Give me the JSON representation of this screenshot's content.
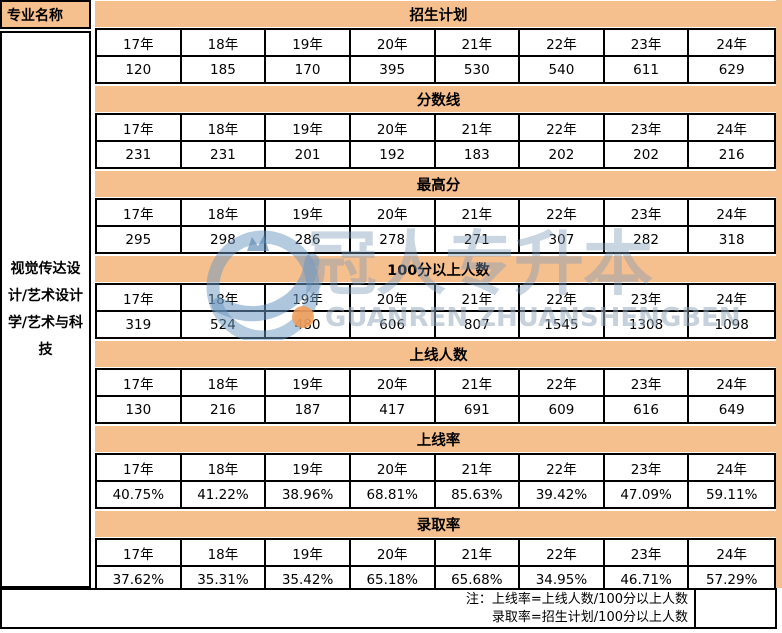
{
  "header": {
    "major_label": "专业名称"
  },
  "major_name": "视觉传达设计/艺术设计学/艺术与科技",
  "chart_data": {
    "type": "table",
    "row_header": "专业名称",
    "entity": "视觉传达设计/艺术设计学/艺术与科技",
    "columns": [
      "17年",
      "18年",
      "19年",
      "20年",
      "21年",
      "22年",
      "23年",
      "24年"
    ],
    "rows": [
      {
        "metric": "招生计划",
        "values": [
          120,
          185,
          170,
          395,
          530,
          540,
          611,
          629
        ]
      },
      {
        "metric": "分数线",
        "values": [
          231,
          231,
          201,
          192,
          183,
          202,
          202,
          216
        ]
      },
      {
        "metric": "最高分",
        "values": [
          295,
          298,
          286,
          278,
          271,
          307,
          282,
          318
        ]
      },
      {
        "metric": "100分以上人数",
        "values": [
          319,
          524,
          480,
          606,
          807,
          1545,
          1308,
          1098
        ]
      },
      {
        "metric": "上线人数",
        "values": [
          130,
          216,
          187,
          417,
          691,
          609,
          616,
          649
        ]
      },
      {
        "metric": "上线率",
        "values": [
          "40.75%",
          "41.22%",
          "38.96%",
          "68.81%",
          "85.63%",
          "39.42%",
          "47.09%",
          "59.11%"
        ]
      },
      {
        "metric": "录取率",
        "values": [
          "37.62%",
          "35.31%",
          "35.42%",
          "65.18%",
          "65.68%",
          "34.95%",
          "46.71%",
          "57.29%"
        ]
      }
    ],
    "notes": [
      "注：上线率=上线人数/100分以上人数",
      "录取率=招生计划/100分以上人数"
    ],
    "layout": {
      "grid": "on",
      "header_fill": "#F6BF8E",
      "border_color": "#000000"
    }
  },
  "notes": [
    "注：上线率=上线人数/100分以上人数",
    "录取率=招生计划/100分以上人数"
  ],
  "watermark": {
    "brand_cn": "冠人专升本",
    "brand_en": "GUANREN ZHUANSHENGBEN"
  },
  "colors": {
    "header_orange": "#F6BF8E",
    "border_black": "#000000",
    "watermark_blue": "#809BBA",
    "watermark_orange": "#F29D57"
  }
}
